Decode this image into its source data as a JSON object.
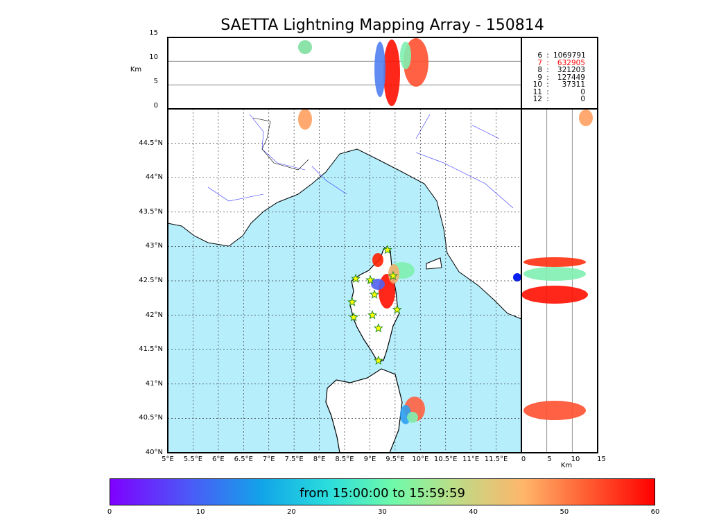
{
  "chart_data": {
    "type": "scatter",
    "title": "SAETTA Lightning Mapping Array - 150814",
    "map": {
      "lon_range": [
        5,
        12
      ],
      "lat_range": [
        40,
        45
      ],
      "lon_ticks": [
        "5°E",
        "5.5°E",
        "6°E",
        "6.5°E",
        "7°E",
        "7.5°E",
        "8°E",
        "8.5°E",
        "9°E",
        "9.5°E",
        "10°E",
        "10.5°E",
        "11°E",
        "11.5°E"
      ],
      "lat_ticks": [
        "40°N",
        "40.5°N",
        "41°N",
        "41.5°N",
        "42°N",
        "42.5°N",
        "43°N",
        "43.5°N",
        "44°N",
        "44.5°N"
      ],
      "grid": true
    },
    "stations": [
      [
        9.35,
        42.95
      ],
      [
        8.72,
        42.53
      ],
      [
        9.01,
        42.51
      ],
      [
        9.46,
        42.57
      ],
      [
        9.09,
        42.3
      ],
      [
        8.65,
        42.19
      ],
      [
        9.54,
        42.08
      ],
      [
        9.05,
        42.0
      ],
      [
        8.68,
        41.97
      ],
      [
        9.17,
        41.81
      ],
      [
        9.17,
        41.34
      ]
    ],
    "altitude_panel": {
      "ylabel": "Km",
      "ylim": [
        0,
        15
      ],
      "yticks": [
        "0",
        "5",
        "10",
        "15"
      ]
    },
    "side_panel": {
      "xlabel": "Km",
      "xlim": [
        0,
        15
      ],
      "xticks": [
        "0",
        "5",
        "10",
        "15"
      ]
    },
    "station_counts": [
      {
        "n": "6",
        "v": "1069791",
        "highlight": false
      },
      {
        "n": "7",
        "v": "632905",
        "highlight": true
      },
      {
        "n": "8",
        "v": "321203",
        "highlight": false
      },
      {
        "n": "9",
        "v": "127449",
        "highlight": false
      },
      {
        "n": "10",
        "v": "37311",
        "highlight": false
      },
      {
        "n": "11",
        "v": "0",
        "highlight": false
      },
      {
        "n": "12",
        "v": "0",
        "highlight": false
      }
    ],
    "colorbar": {
      "label": "from 15:00:00 to 15:59:59",
      "range": [
        0,
        60
      ],
      "ticks": [
        "0",
        "10",
        "20",
        "30",
        "40",
        "50",
        "60"
      ],
      "unit": "minutes"
    },
    "colors": {
      "sea": "#b6eefc",
      "highlight": "#ff0000",
      "station": "#ffff00"
    }
  }
}
